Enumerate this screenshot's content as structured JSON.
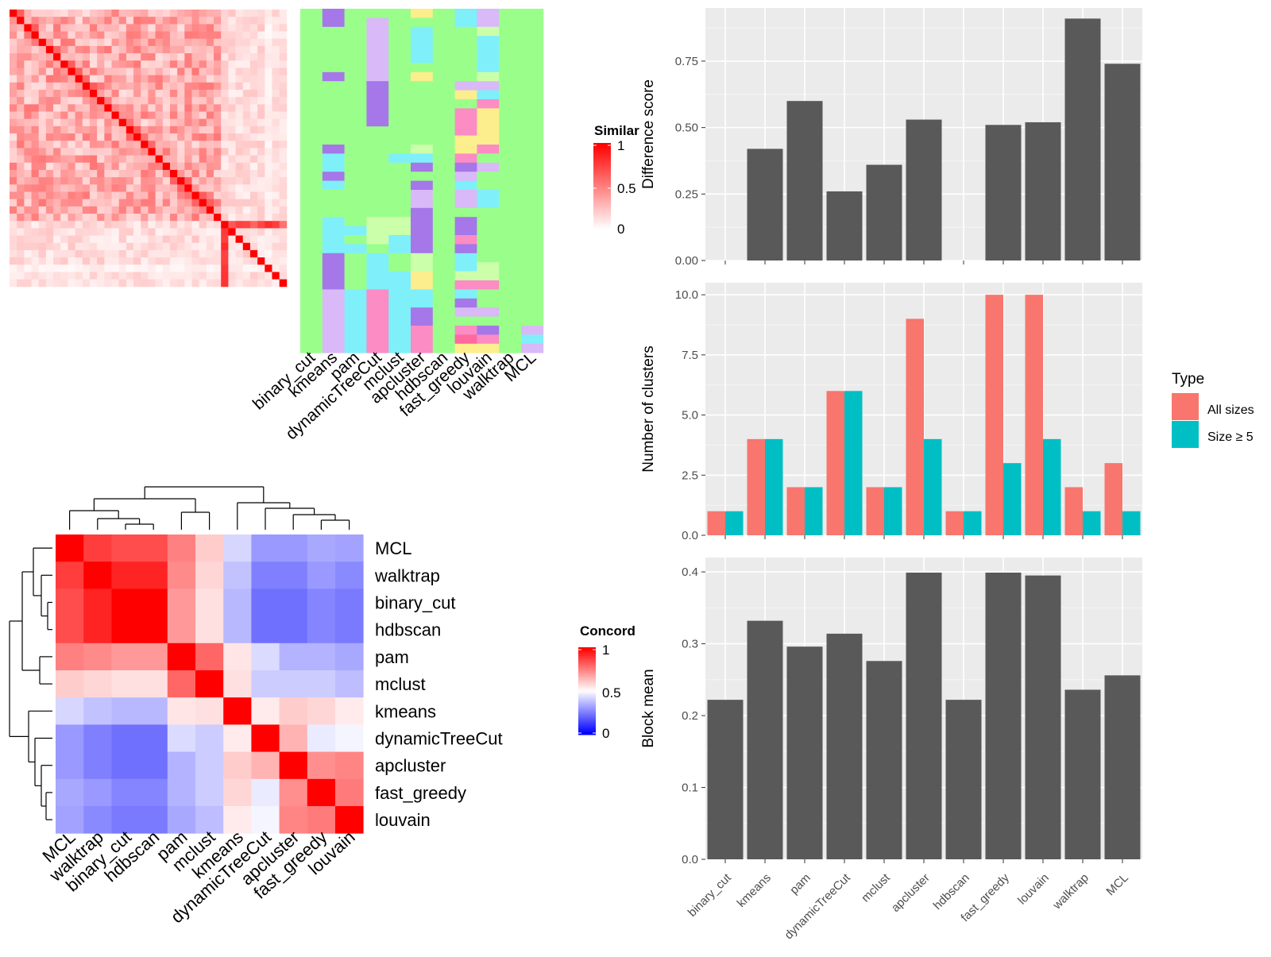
{
  "colors": {
    "green": "#9AFF8A",
    "purple": "#A577E9",
    "lavender": "#D9B9F7",
    "cyan": "#7FEFFA",
    "pink": "#FB8CC4",
    "yellow": "#FCEE8C",
    "lightgreen": "#CCFFAA",
    "hotpink": "#FF69A0",
    "red": "#FF0000",
    "blue": "#0000FF",
    "bar_grey": "#595959",
    "panel_bg": "#EBEBEB",
    "all_sizes": "#F8766D",
    "size_ge5": "#00BFC4"
  },
  "chart_data": [
    {
      "id": "similarity_heatmap",
      "type": "heatmap",
      "n": 38,
      "legend_title": "Similar",
      "legend_ticks": [
        "1",
        "0.5",
        "0"
      ],
      "value_range": [
        0,
        1
      ],
      "low_similarity_columns": [
        29,
        30,
        31,
        32,
        33,
        34
      ],
      "low_similarity_rows": [
        35
      ]
    },
    {
      "id": "membership_heatmap",
      "type": "heatmap",
      "n_rows": 38,
      "columns": [
        "binary_cut",
        "kmeans",
        "pam",
        "dynamicTreeCut",
        "mclust",
        "apcluster",
        "hdbscan",
        "fast_greedy",
        "louvain",
        "walktrap",
        "MCL"
      ],
      "runs": [
        [
          [
            0,
            38,
            "green"
          ]
        ],
        [
          [
            0,
            2,
            "purple"
          ],
          [
            2,
            7,
            "green"
          ],
          [
            7,
            8,
            "purple"
          ],
          [
            8,
            15,
            "green"
          ],
          [
            15,
            16,
            "purple"
          ],
          [
            16,
            18,
            "cyan"
          ],
          [
            18,
            19,
            "purple"
          ],
          [
            19,
            20,
            "cyan"
          ],
          [
            20,
            23,
            "green"
          ],
          [
            23,
            27,
            "cyan"
          ],
          [
            27,
            31,
            "purple"
          ],
          [
            31,
            38,
            "lavender"
          ]
        ],
        [
          [
            0,
            24,
            "green"
          ],
          [
            24,
            25,
            "cyan"
          ],
          [
            25,
            26,
            "green"
          ],
          [
            26,
            27,
            "cyan"
          ],
          [
            27,
            31,
            "green"
          ],
          [
            31,
            38,
            "cyan"
          ]
        ],
        [
          [
            0,
            1,
            "green"
          ],
          [
            1,
            8,
            "lavender"
          ],
          [
            8,
            13,
            "purple"
          ],
          [
            13,
            23,
            "green"
          ],
          [
            23,
            26,
            "lightgreen"
          ],
          [
            26,
            27,
            "green"
          ],
          [
            27,
            31,
            "cyan"
          ],
          [
            31,
            38,
            "pink"
          ]
        ],
        [
          [
            0,
            16,
            "green"
          ],
          [
            16,
            17,
            "cyan"
          ],
          [
            17,
            23,
            "green"
          ],
          [
            23,
            25,
            "lightgreen"
          ],
          [
            25,
            27,
            "cyan"
          ],
          [
            27,
            29,
            "green"
          ],
          [
            29,
            38,
            "cyan"
          ]
        ],
        [
          [
            0,
            1,
            "yellow"
          ],
          [
            1,
            2,
            "green"
          ],
          [
            2,
            6,
            "cyan"
          ],
          [
            6,
            7,
            "green"
          ],
          [
            7,
            8,
            "yellow"
          ],
          [
            8,
            15,
            "green"
          ],
          [
            15,
            16,
            "lightgreen"
          ],
          [
            16,
            17,
            "cyan"
          ],
          [
            17,
            18,
            "purple"
          ],
          [
            18,
            19,
            "green"
          ],
          [
            19,
            20,
            "purple"
          ],
          [
            20,
            22,
            "lavender"
          ],
          [
            22,
            27,
            "purple"
          ],
          [
            27,
            29,
            "lightgreen"
          ],
          [
            29,
            31,
            "yellow"
          ],
          [
            31,
            33,
            "cyan"
          ],
          [
            33,
            35,
            "purple"
          ],
          [
            35,
            38,
            "pink"
          ]
        ],
        [
          [
            0,
            38,
            "green"
          ]
        ],
        [
          [
            0,
            2,
            "cyan"
          ],
          [
            2,
            8,
            "green"
          ],
          [
            8,
            9,
            "lavender"
          ],
          [
            9,
            10,
            "yellow"
          ],
          [
            10,
            11,
            "green"
          ],
          [
            11,
            14,
            "pink"
          ],
          [
            14,
            16,
            "yellow"
          ],
          [
            16,
            17,
            "pink"
          ],
          [
            17,
            18,
            "purple"
          ],
          [
            18,
            19,
            "lavender"
          ],
          [
            19,
            20,
            "cyan"
          ],
          [
            20,
            22,
            "lavender"
          ],
          [
            22,
            23,
            "green"
          ],
          [
            23,
            25,
            "purple"
          ],
          [
            25,
            26,
            "pink"
          ],
          [
            26,
            27,
            "purple"
          ],
          [
            27,
            29,
            "cyan"
          ],
          [
            29,
            30,
            "lightgreen"
          ],
          [
            30,
            31,
            "pink"
          ],
          [
            31,
            32,
            "cyan"
          ],
          [
            32,
            33,
            "purple"
          ],
          [
            33,
            34,
            "lavender"
          ],
          [
            34,
            35,
            "green"
          ],
          [
            35,
            36,
            "pink"
          ],
          [
            36,
            37,
            "hotpink"
          ],
          [
            37,
            38,
            "yellow"
          ]
        ],
        [
          [
            0,
            2,
            "lavender"
          ],
          [
            2,
            3,
            "lightgreen"
          ],
          [
            3,
            7,
            "cyan"
          ],
          [
            7,
            8,
            "lightgreen"
          ],
          [
            8,
            9,
            "lavender"
          ],
          [
            9,
            10,
            "cyan"
          ],
          [
            10,
            11,
            "pink"
          ],
          [
            11,
            15,
            "yellow"
          ],
          [
            15,
            16,
            "pink"
          ],
          [
            16,
            17,
            "green"
          ],
          [
            17,
            18,
            "lavender"
          ],
          [
            18,
            20,
            "green"
          ],
          [
            20,
            22,
            "cyan"
          ],
          [
            22,
            28,
            "green"
          ],
          [
            28,
            30,
            "lightgreen"
          ],
          [
            30,
            31,
            "pink"
          ],
          [
            31,
            33,
            "green"
          ],
          [
            33,
            34,
            "lavender"
          ],
          [
            34,
            35,
            "green"
          ],
          [
            35,
            36,
            "purple"
          ],
          [
            36,
            37,
            "pink"
          ],
          [
            37,
            38,
            "yellow"
          ]
        ],
        [
          [
            0,
            38,
            "green"
          ]
        ],
        [
          [
            0,
            35,
            "green"
          ],
          [
            35,
            36,
            "lavender"
          ],
          [
            36,
            37,
            "cyan"
          ],
          [
            37,
            38,
            "lavender"
          ]
        ]
      ],
      "xtick_labels": [
        "binary_cut",
        "kmeans",
        "pam",
        "dynamicTreeCut",
        "mclust",
        "apcluster",
        "hdbscan",
        "fast_greedy",
        "louvain",
        "walktrap",
        "MCL"
      ]
    },
    {
      "id": "concordance_heatmap",
      "type": "heatmap",
      "rows": [
        "MCL",
        "walktrap",
        "binary_cut",
        "hdbscan",
        "pam",
        "mclust",
        "kmeans",
        "dynamicTreeCut",
        "apcluster",
        "fast_greedy",
        "louvain"
      ],
      "columns": [
        "MCL",
        "walktrap",
        "binary_cut",
        "hdbscan",
        "pam",
        "mclust",
        "kmeans",
        "dynamicTreeCut",
        "apcluster",
        "fast_greedy",
        "louvain"
      ],
      "values": [
        [
          1.0,
          0.88,
          0.85,
          0.85,
          0.75,
          0.6,
          0.42,
          0.3,
          0.3,
          0.33,
          0.32
        ],
        [
          0.88,
          1.0,
          0.93,
          0.93,
          0.73,
          0.58,
          0.38,
          0.25,
          0.25,
          0.3,
          0.27
        ],
        [
          0.85,
          0.93,
          1.0,
          1.0,
          0.7,
          0.56,
          0.36,
          0.22,
          0.22,
          0.26,
          0.24
        ],
        [
          0.85,
          0.93,
          1.0,
          1.0,
          0.7,
          0.56,
          0.36,
          0.22,
          0.22,
          0.26,
          0.24
        ],
        [
          0.75,
          0.73,
          0.7,
          0.7,
          1.0,
          0.8,
          0.55,
          0.43,
          0.35,
          0.35,
          0.33
        ],
        [
          0.6,
          0.58,
          0.56,
          0.56,
          0.8,
          1.0,
          0.56,
          0.4,
          0.4,
          0.4,
          0.37
        ],
        [
          0.42,
          0.38,
          0.36,
          0.36,
          0.55,
          0.56,
          1.0,
          0.54,
          0.6,
          0.58,
          0.54
        ],
        [
          0.3,
          0.25,
          0.22,
          0.22,
          0.43,
          0.4,
          0.54,
          1.0,
          0.65,
          0.46,
          0.48
        ],
        [
          0.3,
          0.25,
          0.22,
          0.22,
          0.35,
          0.4,
          0.6,
          0.65,
          1.0,
          0.72,
          0.74
        ],
        [
          0.33,
          0.3,
          0.26,
          0.26,
          0.35,
          0.4,
          0.58,
          0.46,
          0.72,
          1.0,
          0.76
        ],
        [
          0.32,
          0.27,
          0.24,
          0.24,
          0.33,
          0.37,
          0.54,
          0.48,
          0.74,
          0.76,
          1.0
        ]
      ],
      "legend_title": "Concord",
      "legend_ticks": [
        "1",
        "0.5",
        "0"
      ],
      "value_range": [
        0,
        1
      ]
    },
    {
      "id": "difference_score",
      "type": "bar",
      "categories": [
        "binary_cut",
        "kmeans",
        "pam",
        "dynamicTreeCut",
        "mclust",
        "apcluster",
        "hdbscan",
        "fast_greedy",
        "louvain",
        "walktrap",
        "MCL"
      ],
      "values": [
        0,
        0.42,
        0.6,
        0.26,
        0.36,
        0.53,
        0,
        0.51,
        0.52,
        0.91,
        0.74
      ],
      "ylabel": "Difference score",
      "ylim": [
        0,
        0.95
      ],
      "yticks": [
        0,
        0.25,
        0.5,
        0.75
      ],
      "ytick_labels": [
        "0.00",
        "0.25",
        "0.50",
        "0.75"
      ]
    },
    {
      "id": "number_of_clusters",
      "type": "bar",
      "categories": [
        "binary_cut",
        "kmeans",
        "pam",
        "dynamicTreeCut",
        "mclust",
        "apcluster",
        "hdbscan",
        "fast_greedy",
        "louvain",
        "walktrap",
        "MCL"
      ],
      "series": [
        {
          "name": "All sizes",
          "values": [
            1,
            4,
            2,
            6,
            2,
            9,
            1,
            10,
            10,
            2,
            3
          ]
        },
        {
          "name": "Size ≥ 5",
          "values": [
            1,
            4,
            2,
            6,
            2,
            4,
            1,
            3,
            4,
            1,
            1
          ]
        }
      ],
      "ylabel": "Number of clusters",
      "ylim": [
        0,
        10.5
      ],
      "yticks": [
        0,
        2.5,
        5,
        7.5,
        10
      ],
      "ytick_labels": [
        "0.0",
        "2.5",
        "5.0",
        "7.5",
        "10.0"
      ],
      "legend_title": "Type",
      "legend_position": "right"
    },
    {
      "id": "block_mean",
      "type": "bar",
      "categories": [
        "binary_cut",
        "kmeans",
        "pam",
        "dynamicTreeCut",
        "mclust",
        "apcluster",
        "hdbscan",
        "fast_greedy",
        "louvain",
        "walktrap",
        "MCL"
      ],
      "values": [
        0.222,
        0.332,
        0.296,
        0.314,
        0.276,
        0.399,
        0.222,
        0.399,
        0.395,
        0.236,
        0.256
      ],
      "ylabel": "Block mean",
      "ylim": [
        0,
        0.42
      ],
      "yticks": [
        0,
        0.1,
        0.2,
        0.3,
        0.4
      ],
      "ytick_labels": [
        "0.0",
        "0.1",
        "0.2",
        "0.3",
        "0.4"
      ],
      "xtick_labels": [
        "binary_cut",
        "kmeans",
        "pam",
        "dynamicTreeCut",
        "mclust",
        "apcluster",
        "hdbscan",
        "fast_greedy",
        "louvain",
        "walktrap",
        "MCL"
      ]
    }
  ]
}
